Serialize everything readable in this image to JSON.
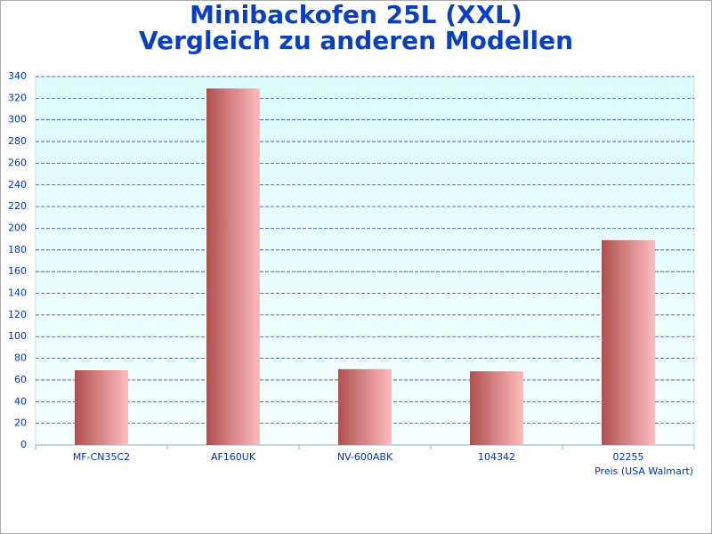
{
  "chart_data": {
    "type": "bar",
    "title": "Minibackofen 25L (XXL)",
    "subtitle": "Vergleich zu anderen Modellen",
    "x_label": "Preis (USA Walmart)",
    "categories": [
      "MF-CN35C2",
      "AF160UK",
      "NV-600ABK",
      "104342",
      "02255"
    ],
    "values": [
      69,
      329,
      70,
      68,
      189
    ],
    "color": "#b85a5a",
    "ylim": [
      0,
      340
    ],
    "yticks": [
      0,
      20,
      40,
      60,
      80,
      100,
      120,
      140,
      160,
      180,
      200,
      220,
      240,
      260,
      280,
      300,
      320,
      340
    ],
    "grid": true
  }
}
